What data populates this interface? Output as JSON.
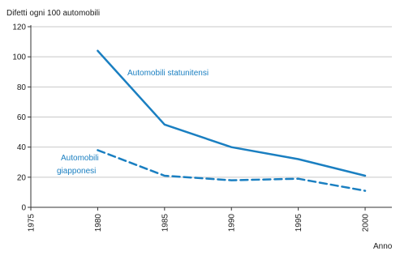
{
  "chart_data": {
    "type": "line",
    "ylabel": "Difetti ogni 100 automobili",
    "xlabel": "Anno",
    "x_ticks": [
      "1975",
      "1980",
      "1985",
      "1990",
      "1995",
      "2000"
    ],
    "y_ticks": [
      "0",
      "20",
      "40",
      "60",
      "80",
      "100",
      "120"
    ],
    "xlim": [
      1975,
      2002
    ],
    "ylim": [
      0,
      120
    ],
    "grid": "horizontal",
    "legend": "none",
    "series": [
      {
        "name": "Automobili statunitensi",
        "style": "solid",
        "color": "#1a7fc1",
        "x": [
          1980,
          1985,
          1990,
          1995,
          2000
        ],
        "y": [
          104,
          55,
          40,
          32,
          21
        ]
      },
      {
        "name": "Automobili giapponesi",
        "style": "dashed",
        "color": "#1a7fc1",
        "x": [
          1980,
          1985,
          1990,
          1995,
          2000
        ],
        "y": [
          38,
          21,
          18,
          19,
          11
        ]
      }
    ],
    "annotations": [
      "Automobili statunitensi",
      "Automobili",
      "giapponesi"
    ]
  }
}
